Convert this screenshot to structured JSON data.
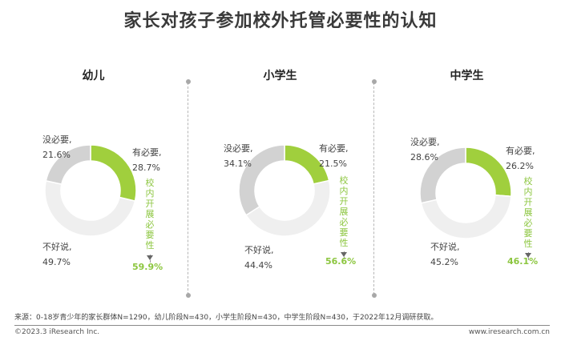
{
  "title": "家长对孩子参加校外托管必要性的认知",
  "colors": {
    "yes": "#a0cf3d",
    "no": "#d2d2d2",
    "unimportant": "#efefef",
    "accent": "#8cc63f"
  },
  "chart_data": [
    {
      "type": "pie",
      "title": "幼儿",
      "slices": [
        {
          "label": "有必要,",
          "value": 28.7,
          "value_text": "28.7%"
        },
        {
          "label": "不好说,",
          "value": 49.7,
          "value_text": "49.7%"
        },
        {
          "label": "没必要,",
          "value": 21.6,
          "value_text": "21.6%"
        }
      ],
      "annotation": "校内开展必要性",
      "total_text": "59.9%"
    },
    {
      "type": "pie",
      "title": "小学生",
      "slices": [
        {
          "label": "有必要,",
          "value": 21.5,
          "value_text": "21.5%"
        },
        {
          "label": "不好说,",
          "value": 44.4,
          "value_text": "44.4%"
        },
        {
          "label": "没必要,",
          "value": 34.1,
          "value_text": "34.1%"
        }
      ],
      "annotation": "校内开展必要性",
      "total_text": "56.6%"
    },
    {
      "type": "pie",
      "title": "中学生",
      "slices": [
        {
          "label": "有必要,",
          "value": 26.2,
          "value_text": "26.2%"
        },
        {
          "label": "不好说,",
          "value": 45.2,
          "value_text": "45.2%"
        },
        {
          "label": "没必要,",
          "value": 28.6,
          "value_text": "28.6%"
        }
      ],
      "annotation": "校内开展必要性",
      "total_text": "46.1%"
    }
  ],
  "source": "来源：0-18岁青少年的家长群体N=1290，幼儿阶段N=430，小学生阶段N=430，中学生阶段N=430，于2022年12月调研获取。",
  "footer": {
    "copyright": "©2023.3 iResearch Inc.",
    "website": "www.iresearch.com.cn"
  }
}
